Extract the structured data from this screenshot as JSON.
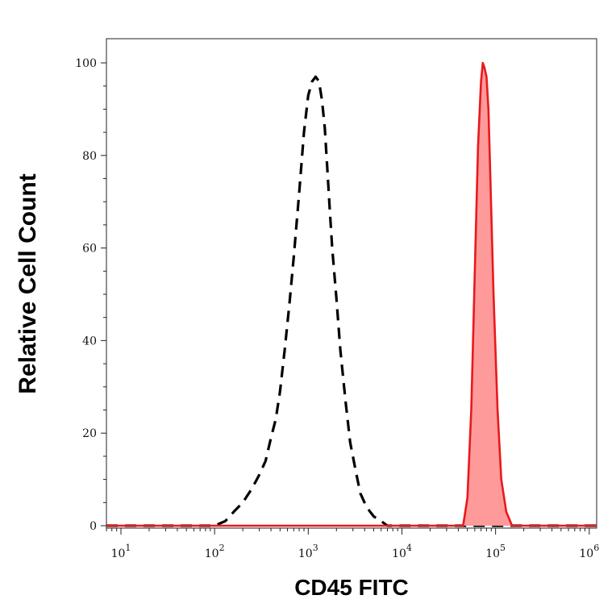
{
  "chart_data": {
    "type": "area",
    "title": "",
    "xlabel": "CD45 FITC",
    "ylabel": "Relative Cell Count",
    "xscale": "log",
    "xlim": [
      7,
      1200000
    ],
    "ylim": [
      0,
      100
    ],
    "grid": false,
    "legend": "none",
    "x_ticks": [
      {
        "base": "10",
        "exp": "1",
        "value": 10
      },
      {
        "base": "10",
        "exp": "2",
        "value": 100
      },
      {
        "base": "10",
        "exp": "3",
        "value": 1000
      },
      {
        "base": "10",
        "exp": "4",
        "value": 10000
      },
      {
        "base": "10",
        "exp": "5",
        "value": 100000
      },
      {
        "base": "10",
        "exp": "6",
        "value": 1000000
      }
    ],
    "y_ticks": [
      {
        "label": "0",
        "value": 0
      },
      {
        "label": "20",
        "value": 20
      },
      {
        "label": "40",
        "value": 40
      },
      {
        "label": "60",
        "value": 60
      },
      {
        "label": "80",
        "value": 80
      },
      {
        "label": "100",
        "value": 100
      }
    ],
    "series": [
      {
        "style": "dashed",
        "color": "#000000",
        "fill": "none",
        "x": [
          7,
          50,
          100,
          130,
          160,
          200,
          250,
          300,
          350,
          400,
          450,
          500,
          560,
          630,
          700,
          800,
          900,
          1000,
          1100,
          1200,
          1300,
          1400,
          1500,
          1600,
          1700,
          1800,
          2000,
          2200,
          2500,
          2800,
          3200,
          3600,
          4200,
          5000,
          6000,
          7000,
          1200000
        ],
        "y": [
          0,
          0,
          0,
          1,
          3,
          5,
          8,
          11,
          14,
          19,
          23,
          29,
          38,
          48,
          58,
          72,
          85,
          93,
          96,
          97,
          96,
          92,
          86,
          77,
          68,
          60,
          49,
          38,
          27,
          18,
          12,
          7,
          4,
          2,
          1,
          0,
          0
        ]
      },
      {
        "style": "solid",
        "color": "#e8191c",
        "fill": "#ff9a9a",
        "x": [
          7,
          45000,
          50000,
          55000,
          60000,
          65000,
          70000,
          73000,
          76000,
          80000,
          84000,
          88000,
          95000,
          105000,
          115000,
          130000,
          150000,
          1200000
        ],
        "y": [
          0,
          0,
          6,
          25,
          55,
          82,
          96,
          100,
          99,
          97,
          90,
          75,
          50,
          25,
          10,
          3,
          0,
          0
        ]
      }
    ]
  }
}
